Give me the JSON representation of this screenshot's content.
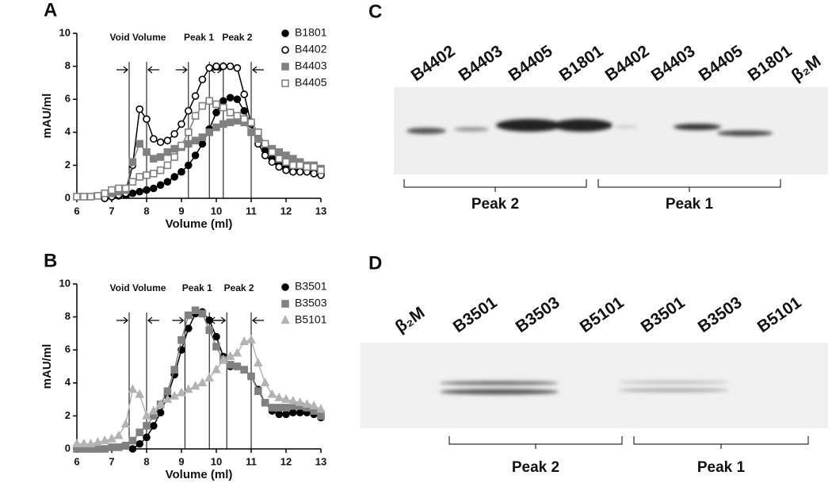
{
  "chart_data": [
    {
      "type": "line",
      "panel": "A",
      "xlabel": "Volume (ml)",
      "ylabel": "mAU/ml",
      "xlim": [
        6,
        13
      ],
      "ylim": [
        0,
        10
      ],
      "xticks": [
        6,
        7,
        8,
        9,
        10,
        11,
        12,
        13
      ],
      "yticks": [
        0,
        2,
        4,
        6,
        8,
        10
      ],
      "annotations": [
        "Void Volume",
        "Peak 1",
        "Peak 2"
      ],
      "vlines": [
        7.5,
        8.0,
        9.2,
        9.8,
        10.2,
        11.0
      ],
      "x": [
        6.0,
        6.2,
        6.4,
        6.6,
        6.8,
        7.0,
        7.2,
        7.4,
        7.6,
        7.8,
        8.0,
        8.2,
        8.4,
        8.6,
        8.8,
        9.0,
        9.2,
        9.4,
        9.6,
        9.8,
        10.0,
        10.2,
        10.4,
        10.6,
        10.8,
        11.0,
        11.2,
        11.4,
        11.6,
        11.8,
        12.0,
        12.2,
        12.4,
        12.6,
        12.8,
        13.0
      ],
      "series": [
        {
          "name": "B1801",
          "color": "#000000",
          "marker": "circle",
          "filled": true,
          "values": [
            null,
            null,
            null,
            null,
            0,
            0.1,
            0.15,
            0.2,
            0.3,
            0.4,
            0.5,
            0.6,
            0.8,
            1.0,
            1.3,
            1.6,
            2.0,
            2.6,
            3.3,
            4.2,
            5.2,
            5.9,
            6.1,
            6.0,
            5.3,
            4.5,
            3.6,
            2.9,
            2.4,
            2.1,
            1.9,
            1.8,
            1.8,
            1.8,
            1.7,
            1.5
          ]
        },
        {
          "name": "B4402",
          "color": "#000000",
          "marker": "circle",
          "filled": false,
          "values": [
            null,
            null,
            null,
            null,
            0,
            0.1,
            0.2,
            0.3,
            2.0,
            5.4,
            4.8,
            3.6,
            3.4,
            3.5,
            3.9,
            4.5,
            5.3,
            6.2,
            7.2,
            7.9,
            8.0,
            8.0,
            8.0,
            7.9,
            6.3,
            4.5,
            3.3,
            2.6,
            2.2,
            1.9,
            1.7,
            1.6,
            1.6,
            1.6,
            1.5,
            1.4
          ]
        },
        {
          "name": "B4403",
          "color": "#808080",
          "marker": "square",
          "filled": true,
          "values": [
            null,
            null,
            null,
            null,
            0.3,
            0.3,
            0.4,
            0.5,
            2.2,
            3.3,
            2.8,
            2.4,
            2.5,
            2.8,
            3.0,
            3.1,
            3.3,
            3.5,
            3.7,
            4.0,
            4.3,
            4.5,
            4.6,
            4.7,
            4.6,
            4.0,
            3.6,
            3.3,
            3.0,
            2.8,
            2.6,
            2.4,
            2.2,
            2.0,
            2.0,
            1.8
          ]
        },
        {
          "name": "B4405",
          "color": "#808080",
          "marker": "square",
          "filled": false,
          "values": [
            0.1,
            0.1,
            0.1,
            0.15,
            0.3,
            0.5,
            0.6,
            0.6,
            1.0,
            1.3,
            1.4,
            1.5,
            1.7,
            2.0,
            2.5,
            3.2,
            4.0,
            5.0,
            5.6,
            5.9,
            5.7,
            5.5,
            5.2,
            5.0,
            4.8,
            4.6,
            4.0,
            3.3,
            2.8,
            2.4,
            2.2,
            2.0,
            2.0,
            1.9,
            1.9,
            1.7
          ]
        }
      ]
    },
    {
      "type": "line",
      "panel": "B",
      "xlabel": "Volume (ml)",
      "ylabel": "mAU/ml",
      "xlim": [
        6,
        13
      ],
      "ylim": [
        0,
        10
      ],
      "xticks": [
        6,
        7,
        8,
        9,
        10,
        11,
        12,
        13
      ],
      "yticks": [
        0,
        2,
        4,
        6,
        8,
        10
      ],
      "annotations": [
        "Void Volume",
        "Peak 1",
        "Peak 2"
      ],
      "vlines": [
        7.5,
        8.0,
        9.1,
        9.8,
        10.3,
        11.0
      ],
      "x": [
        6.0,
        6.2,
        6.4,
        6.6,
        6.8,
        7.0,
        7.2,
        7.4,
        7.6,
        7.8,
        8.0,
        8.2,
        8.4,
        8.6,
        8.8,
        9.0,
        9.2,
        9.4,
        9.6,
        9.8,
        10.0,
        10.2,
        10.4,
        10.6,
        10.8,
        11.0,
        11.2,
        11.4,
        11.6,
        11.8,
        12.0,
        12.2,
        12.4,
        12.6,
        12.8,
        13.0
      ],
      "series": [
        {
          "name": "B3501",
          "color": "#000000",
          "marker": "circle",
          "filled": true,
          "values": [
            null,
            null,
            null,
            null,
            null,
            null,
            null,
            null,
            0,
            0.3,
            0.7,
            1.4,
            2.2,
            3.2,
            4.5,
            6.0,
            7.3,
            8.2,
            8.3,
            7.8,
            6.8,
            5.6,
            5.0,
            5.0,
            4.8,
            4.4,
            3.6,
            2.8,
            2.3,
            2.1,
            2.1,
            2.2,
            2.2,
            2.2,
            2.1,
            1.9
          ]
        },
        {
          "name": "B3503",
          "color": "#808080",
          "marker": "square",
          "filled": true,
          "values": [
            0,
            0,
            0,
            0,
            0,
            0.1,
            0.1,
            0.2,
            0.5,
            1.0,
            1.4,
            2.0,
            2.7,
            3.5,
            4.8,
            6.6,
            8.1,
            8.4,
            8.2,
            7.2,
            6.2,
            5.4,
            5.1,
            5.0,
            4.8,
            4.4,
            3.5,
            2.8,
            2.5,
            2.5,
            2.5,
            2.6,
            2.6,
            2.5,
            2.3,
            2.0
          ]
        },
        {
          "name": "B5101",
          "color": "#b3b3b3",
          "marker": "triangle",
          "filled": true,
          "values": [
            0.3,
            0.3,
            0.3,
            0.4,
            0.5,
            0.6,
            0.8,
            1.5,
            3.6,
            3.3,
            2.0,
            2.3,
            2.7,
            3.0,
            3.2,
            3.4,
            3.6,
            3.8,
            4.0,
            4.3,
            4.8,
            5.4,
            5.6,
            5.8,
            6.5,
            6.6,
            5.2,
            4.0,
            3.3,
            3.1,
            3.0,
            2.9,
            2.8,
            2.7,
            2.6,
            2.4
          ]
        }
      ]
    }
  ],
  "blots": [
    {
      "panel": "C",
      "lanes": [
        "B4402",
        "B4403",
        "B4405",
        "B1801",
        "B4402",
        "B4403",
        "B4405",
        "B1801",
        "β₂M"
      ],
      "groups": [
        "Peak 2",
        "Peak 1"
      ]
    },
    {
      "panel": "D",
      "lanes": [
        "β₂M",
        "B3501",
        "B3503",
        "B5101",
        "B3501",
        "B3503",
        "B5101"
      ],
      "groups": [
        "Peak 2",
        "Peak 1"
      ]
    }
  ]
}
